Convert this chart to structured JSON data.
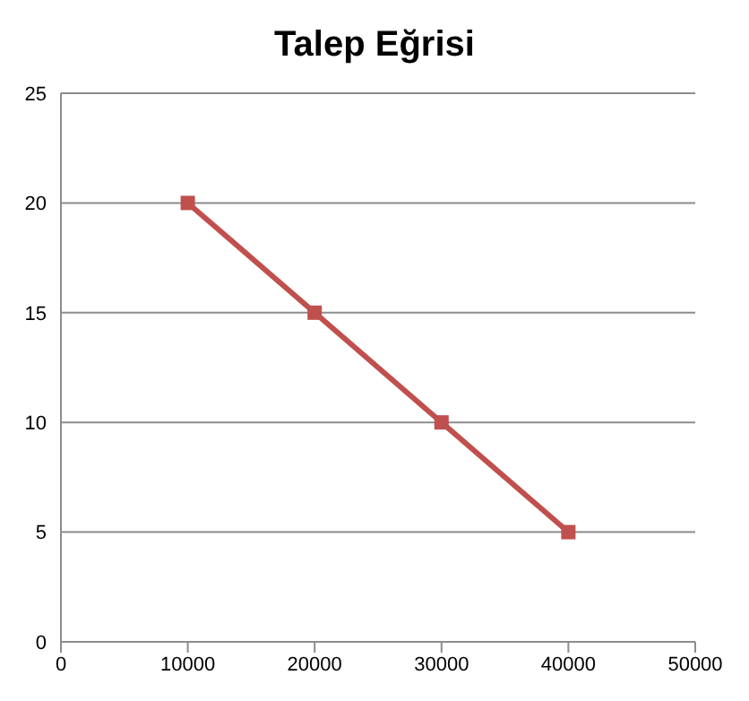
{
  "chart_data": {
    "type": "line",
    "title": "Talep Eğrisi",
    "x": [
      10000,
      20000,
      30000,
      40000
    ],
    "series": [
      {
        "color": "#c0504d",
        "values": [
          20,
          15,
          10,
          5
        ]
      }
    ],
    "xlim": [
      0,
      50000
    ],
    "xticks": [
      0,
      10000,
      20000,
      30000,
      40000,
      50000
    ],
    "ylim": [
      0,
      25
    ],
    "yticks": [
      0,
      5,
      10,
      15,
      20,
      25
    ],
    "grid": "y",
    "marker": "square",
    "line_style": "solid",
    "legend": false
  }
}
